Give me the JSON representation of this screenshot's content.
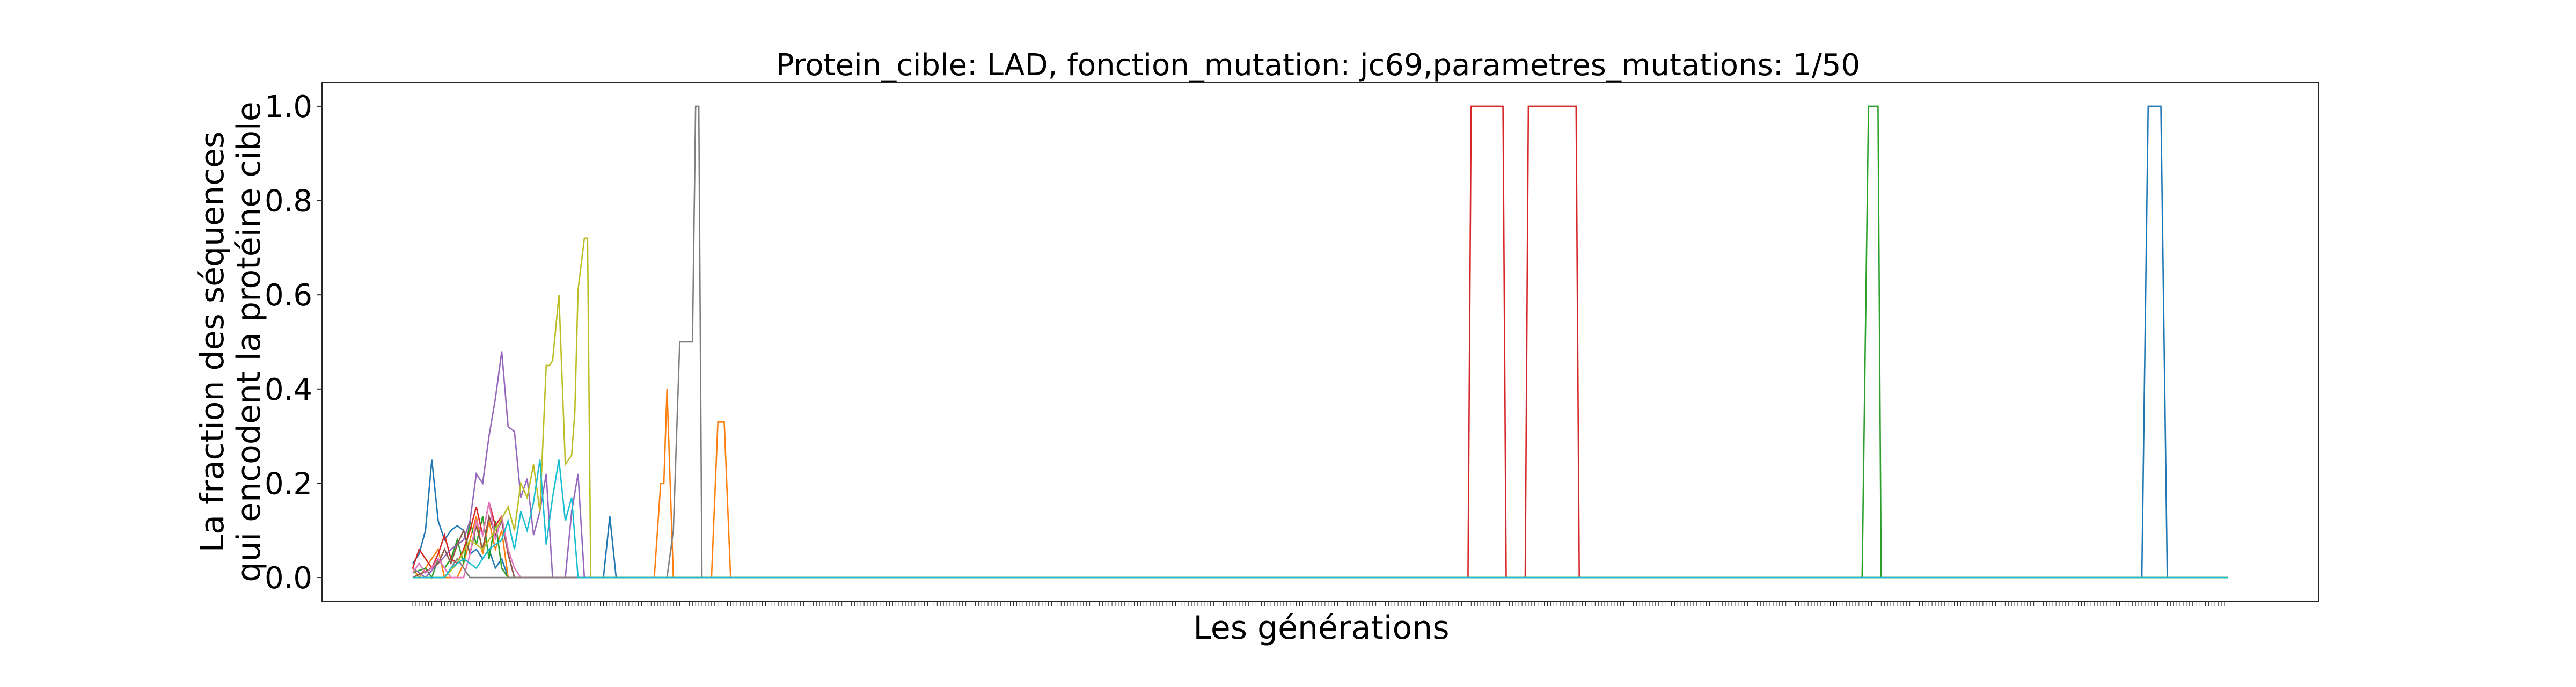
{
  "chart_data": {
    "type": "line",
    "title": "Protein_cible: LAD, fonction_mutation: jc69,parametres_mutations: 1/50",
    "xlabel": "Les générations",
    "ylabel_lines": [
      "La fraction des séquences",
      "qui encodent la protéine cible"
    ],
    "ylim": [
      -0.05,
      1.05
    ],
    "xlim": [
      -28.55,
      599.55
    ],
    "yticks": [
      0.0,
      0.2,
      0.4,
      0.6,
      0.8,
      1.0
    ],
    "ytick_labels": [
      "0.0",
      "0.2",
      "0.4",
      "0.6",
      "0.8",
      "1.0"
    ],
    "n_generations": 571,
    "grid": false,
    "legend": "none",
    "series": [
      {
        "color": "#1f77b4",
        "points": [
          [
            0,
            0.03
          ],
          [
            2,
            0.05
          ],
          [
            4,
            0.1
          ],
          [
            6,
            0.25
          ],
          [
            8,
            0.12
          ],
          [
            10,
            0.08
          ],
          [
            12,
            0.1
          ],
          [
            14,
            0.11
          ],
          [
            16,
            0.1
          ],
          [
            18,
            0.05
          ],
          [
            20,
            0.06
          ],
          [
            22,
            0.04
          ],
          [
            24,
            0.06
          ],
          [
            26,
            0.02
          ],
          [
            28,
            0.04
          ],
          [
            30,
            0
          ],
          [
            36,
            0
          ],
          [
            60,
            0
          ],
          [
            62,
            0.13
          ],
          [
            64,
            0
          ],
          [
            544,
            0
          ],
          [
            546,
            1.0
          ],
          [
            550,
            1.0
          ],
          [
            552,
            0
          ],
          [
            571,
            0
          ]
        ]
      },
      {
        "color": "#ff7f0e",
        "points": [
          [
            0,
            0.02
          ],
          [
            2,
            0
          ],
          [
            4,
            0.02
          ],
          [
            6,
            0.04
          ],
          [
            8,
            0.06
          ],
          [
            10,
            0
          ],
          [
            14,
            0
          ],
          [
            16,
            0.03
          ],
          [
            18,
            0.08
          ],
          [
            20,
            0.13
          ],
          [
            22,
            0.05
          ],
          [
            24,
            0.12
          ],
          [
            26,
            0.06
          ],
          [
            28,
            0.1
          ],
          [
            30,
            0
          ],
          [
            76,
            0
          ],
          [
            78,
            0.2
          ],
          [
            79,
            0.2
          ],
          [
            80,
            0.4
          ],
          [
            82,
            0
          ],
          [
            94,
            0
          ],
          [
            96,
            0.33
          ],
          [
            98,
            0.33
          ],
          [
            100,
            0
          ],
          [
            571,
            0
          ]
        ]
      },
      {
        "color": "#2ca02c",
        "points": [
          [
            0,
            0.01
          ],
          [
            4,
            0.02
          ],
          [
            6,
            0
          ],
          [
            8,
            0.04
          ],
          [
            10,
            0.02
          ],
          [
            12,
            0.04
          ],
          [
            14,
            0.08
          ],
          [
            16,
            0.03
          ],
          [
            18,
            0.12
          ],
          [
            20,
            0.07
          ],
          [
            22,
            0.13
          ],
          [
            24,
            0.04
          ],
          [
            26,
            0.12
          ],
          [
            28,
            0.02
          ],
          [
            30,
            0
          ],
          [
            456,
            0
          ],
          [
            458,
            1.0
          ],
          [
            461,
            1.0
          ],
          [
            462,
            0
          ],
          [
            571,
            0
          ]
        ]
      },
      {
        "color": "#d62728",
        "points": [
          [
            0,
            0.02
          ],
          [
            2,
            0.06
          ],
          [
            4,
            0.04
          ],
          [
            6,
            0.02
          ],
          [
            8,
            0.05
          ],
          [
            10,
            0.09
          ],
          [
            12,
            0.04
          ],
          [
            14,
            0.03
          ],
          [
            16,
            0.06
          ],
          [
            18,
            0.1
          ],
          [
            20,
            0.15
          ],
          [
            22,
            0.09
          ],
          [
            24,
            0.16
          ],
          [
            26,
            0.11
          ],
          [
            28,
            0.13
          ],
          [
            30,
            0.05
          ],
          [
            32,
            0
          ],
          [
            332,
            0
          ],
          [
            333,
            1.0
          ],
          [
            343,
            1.0
          ],
          [
            344,
            0
          ],
          [
            350,
            0
          ],
          [
            351,
            1.0
          ],
          [
            366,
            1.0
          ],
          [
            367,
            0
          ],
          [
            571,
            0
          ]
        ]
      },
      {
        "color": "#9467bd",
        "points": [
          [
            0,
            0.02
          ],
          [
            4,
            0
          ],
          [
            8,
            0.03
          ],
          [
            12,
            0.06
          ],
          [
            16,
            0.08
          ],
          [
            18,
            0.12
          ],
          [
            20,
            0.22
          ],
          [
            22,
            0.2
          ],
          [
            24,
            0.3
          ],
          [
            26,
            0.38
          ],
          [
            28,
            0.48
          ],
          [
            30,
            0.32
          ],
          [
            32,
            0.31
          ],
          [
            34,
            0.17
          ],
          [
            36,
            0.21
          ],
          [
            38,
            0.09
          ],
          [
            40,
            0.14
          ],
          [
            42,
            0.22
          ],
          [
            44,
            0
          ],
          [
            48,
            0
          ],
          [
            50,
            0.14
          ],
          [
            52,
            0.22
          ],
          [
            54,
            0
          ],
          [
            571,
            0
          ]
        ]
      },
      {
        "color": "#8c564b",
        "points": [
          [
            0,
            0
          ],
          [
            6,
            0.02
          ],
          [
            8,
            0.03
          ],
          [
            10,
            0.06
          ],
          [
            12,
            0.03
          ],
          [
            14,
            0.07
          ],
          [
            16,
            0.1
          ],
          [
            18,
            0.05
          ],
          [
            20,
            0.11
          ],
          [
            22,
            0.06
          ],
          [
            24,
            0.13
          ],
          [
            26,
            0.09
          ],
          [
            28,
            0.12
          ],
          [
            30,
            0.05
          ],
          [
            32,
            0
          ],
          [
            571,
            0
          ]
        ]
      },
      {
        "color": "#e377c2",
        "points": [
          [
            0,
            0.01
          ],
          [
            2,
            0.03
          ],
          [
            4,
            0.01
          ],
          [
            6,
            0.02
          ],
          [
            8,
            0.04
          ],
          [
            10,
            0.02
          ],
          [
            12,
            0
          ],
          [
            16,
            0
          ],
          [
            18,
            0.05
          ],
          [
            20,
            0.12
          ],
          [
            22,
            0.09
          ],
          [
            24,
            0.16
          ],
          [
            26,
            0.08
          ],
          [
            28,
            0.13
          ],
          [
            30,
            0.06
          ],
          [
            32,
            0.02
          ],
          [
            34,
            0
          ],
          [
            571,
            0
          ]
        ]
      },
      {
        "color": "#7f7f7f",
        "points": [
          [
            0,
            0
          ],
          [
            10,
            0
          ],
          [
            12,
            0.02
          ],
          [
            14,
            0.04
          ],
          [
            16,
            0.02
          ],
          [
            18,
            0
          ],
          [
            80,
            0
          ],
          [
            82,
            0.1
          ],
          [
            84,
            0.5
          ],
          [
            88,
            0.5
          ],
          [
            89,
            1.0
          ],
          [
            90,
            1.0
          ],
          [
            91,
            0
          ],
          [
            571,
            0
          ]
        ]
      },
      {
        "color": "#bcbd22",
        "points": [
          [
            0,
            0
          ],
          [
            10,
            0
          ],
          [
            14,
            0.03
          ],
          [
            18,
            0.08
          ],
          [
            22,
            0.06
          ],
          [
            26,
            0.1
          ],
          [
            30,
            0.15
          ],
          [
            32,
            0.1
          ],
          [
            34,
            0.2
          ],
          [
            36,
            0.17
          ],
          [
            38,
            0.24
          ],
          [
            40,
            0.14
          ],
          [
            42,
            0.45
          ],
          [
            43,
            0.45
          ],
          [
            44,
            0.46
          ],
          [
            46,
            0.6
          ],
          [
            48,
            0.24
          ],
          [
            50,
            0.26
          ],
          [
            51,
            0.35
          ],
          [
            52,
            0.61
          ],
          [
            54,
            0.72
          ],
          [
            55,
            0.72
          ],
          [
            56,
            0
          ],
          [
            571,
            0
          ]
        ]
      },
      {
        "color": "#17becf",
        "points": [
          [
            0,
            0
          ],
          [
            10,
            0
          ],
          [
            12,
            0.02
          ],
          [
            16,
            0.04
          ],
          [
            20,
            0.02
          ],
          [
            24,
            0.06
          ],
          [
            28,
            0.08
          ],
          [
            30,
            0.12
          ],
          [
            32,
            0.06
          ],
          [
            34,
            0.14
          ],
          [
            36,
            0.1
          ],
          [
            38,
            0.16
          ],
          [
            40,
            0.25
          ],
          [
            42,
            0.07
          ],
          [
            44,
            0.17
          ],
          [
            46,
            0.25
          ],
          [
            48,
            0.12
          ],
          [
            50,
            0.17
          ],
          [
            52,
            0
          ],
          [
            571,
            0
          ]
        ]
      }
    ]
  }
}
